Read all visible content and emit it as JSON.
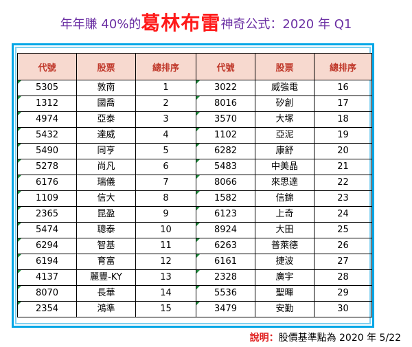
{
  "title": {
    "prefix": "年年賺 40%的",
    "name": "葛林布雷",
    "suffix": "神奇公式：2020 年 Q1"
  },
  "table": {
    "headers": [
      "代號",
      "股票",
      "總排序",
      "代號",
      "股票",
      "總排序"
    ],
    "left": [
      {
        "code": "5305",
        "name": "敦南",
        "rank": "1"
      },
      {
        "code": "1312",
        "name": "國喬",
        "rank": "2"
      },
      {
        "code": "4974",
        "name": "亞泰",
        "rank": "3"
      },
      {
        "code": "5432",
        "name": "達威",
        "rank": "4"
      },
      {
        "code": "5490",
        "name": "同亨",
        "rank": "5"
      },
      {
        "code": "5278",
        "name": "尚凡",
        "rank": "6"
      },
      {
        "code": "6176",
        "name": "瑞儀",
        "rank": "7"
      },
      {
        "code": "1109",
        "name": "信大",
        "rank": "8"
      },
      {
        "code": "2365",
        "name": "昆盈",
        "rank": "9"
      },
      {
        "code": "5474",
        "name": "聰泰",
        "rank": "10"
      },
      {
        "code": "6294",
        "name": "智基",
        "rank": "11"
      },
      {
        "code": "6194",
        "name": "育富",
        "rank": "12"
      },
      {
        "code": "4137",
        "name": "麗豐-KY",
        "rank": "13"
      },
      {
        "code": "8070",
        "name": "長華",
        "rank": "14"
      },
      {
        "code": "2354",
        "name": "鴻準",
        "rank": "15"
      }
    ],
    "right": [
      {
        "code": "3022",
        "name": "威強電",
        "rank": "16"
      },
      {
        "code": "8016",
        "name": "矽創",
        "rank": "17"
      },
      {
        "code": "3570",
        "name": "大塚",
        "rank": "18"
      },
      {
        "code": "1102",
        "name": "亞泥",
        "rank": "19"
      },
      {
        "code": "6282",
        "name": "康舒",
        "rank": "20"
      },
      {
        "code": "5483",
        "name": "中美晶",
        "rank": "21"
      },
      {
        "code": "8066",
        "name": "來思達",
        "rank": "22"
      },
      {
        "code": "1582",
        "name": "信錦",
        "rank": "23"
      },
      {
        "code": "6123",
        "name": "上奇",
        "rank": "24"
      },
      {
        "code": "8924",
        "name": "大田",
        "rank": "25"
      },
      {
        "code": "6263",
        "name": "普萊德",
        "rank": "26"
      },
      {
        "code": "6161",
        "name": "捷波",
        "rank": "27"
      },
      {
        "code": "2328",
        "name": "廣宇",
        "rank": "28"
      },
      {
        "code": "5536",
        "name": "聖暉",
        "rank": "29"
      },
      {
        "code": "3479",
        "name": "安勤",
        "rank": "30"
      }
    ]
  },
  "note": {
    "label": "說明：",
    "text": "股價基準點為 2020 年 5/22"
  },
  "colors": {
    "title": "#6b2fa3",
    "title_name": "#ff1a1a",
    "header_bg": "#f7d9cf",
    "header_text": "#c0392b",
    "frame": "#00a6e6",
    "note_label": "#e02020"
  }
}
